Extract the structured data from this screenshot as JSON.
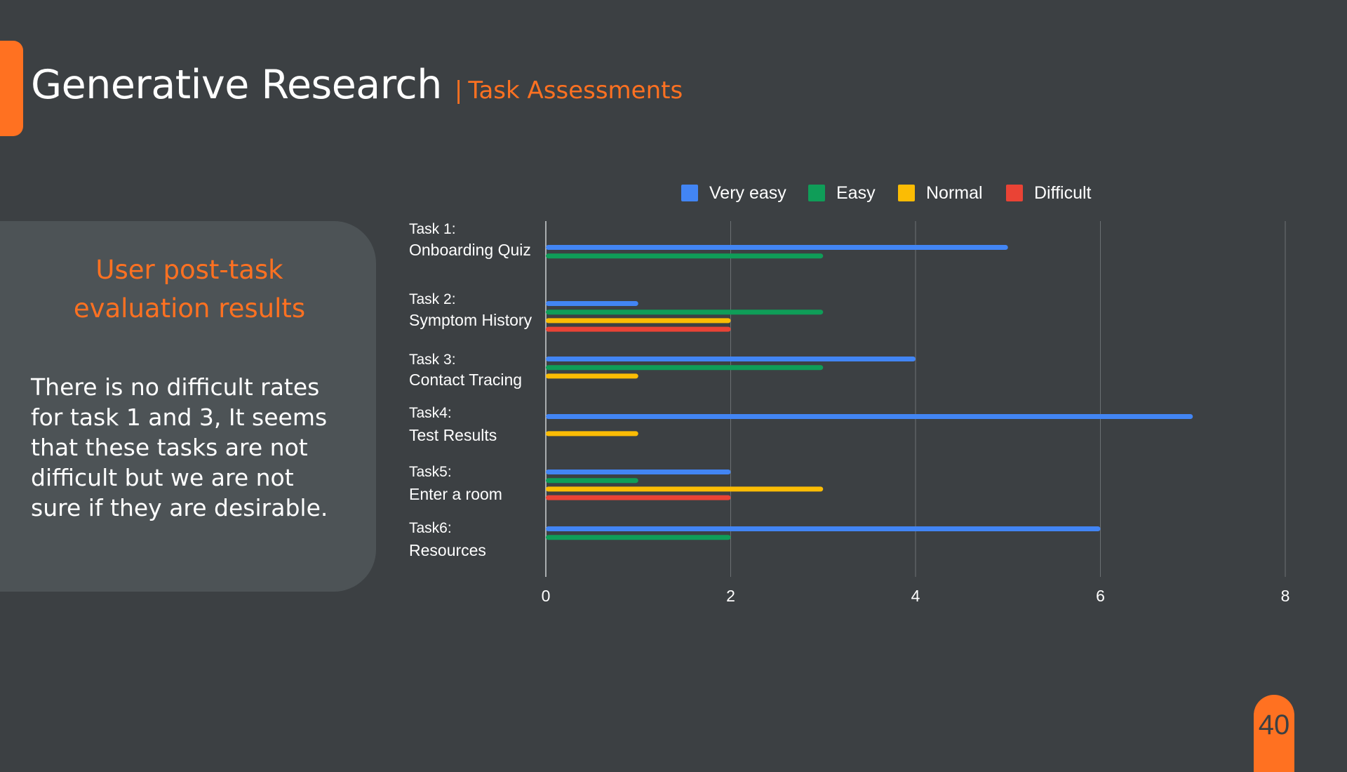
{
  "slide": {
    "title": "Generative Research",
    "separator": "|",
    "subtitle": "Task Assessments",
    "page_number": "40",
    "accent_color": "#ff7121",
    "background_color": "#3c4043"
  },
  "panel": {
    "heading": "User post-task evaluation results",
    "body": "There is no difficult rates for task 1 and 3, It seems that these tasks are not difficult but we are not sure if they are desirable."
  },
  "chart_data": {
    "type": "bar",
    "orientation": "horizontal",
    "categories": [
      [
        "Task 1:",
        "Onboarding Quiz"
      ],
      [
        "Task 2:",
        "Symptom History"
      ],
      [
        "Task 3:",
        "Contact Tracing"
      ],
      [
        "Task4:",
        "Test Results"
      ],
      [
        "Task5:",
        "Enter a room"
      ],
      [
        "Task6:",
        "Resources"
      ]
    ],
    "series": [
      {
        "name": "Very easy",
        "color": "#4285f4",
        "values": [
          5,
          1,
          4,
          7,
          2,
          6
        ]
      },
      {
        "name": "Easy",
        "color": "#0f9d58",
        "values": [
          3,
          3,
          3,
          0,
          1,
          2
        ]
      },
      {
        "name": "Normal",
        "color": "#fbbc04",
        "values": [
          0,
          2,
          1,
          1,
          3,
          0
        ]
      },
      {
        "name": "Difficult",
        "color": "#ea4335",
        "values": [
          0,
          2,
          0,
          0,
          2,
          0
        ]
      }
    ],
    "xlim": [
      0,
      8
    ],
    "x_ticks": [
      "0",
      "2",
      "4",
      "6",
      "8"
    ],
    "grid": true,
    "legend_position": "top"
  }
}
